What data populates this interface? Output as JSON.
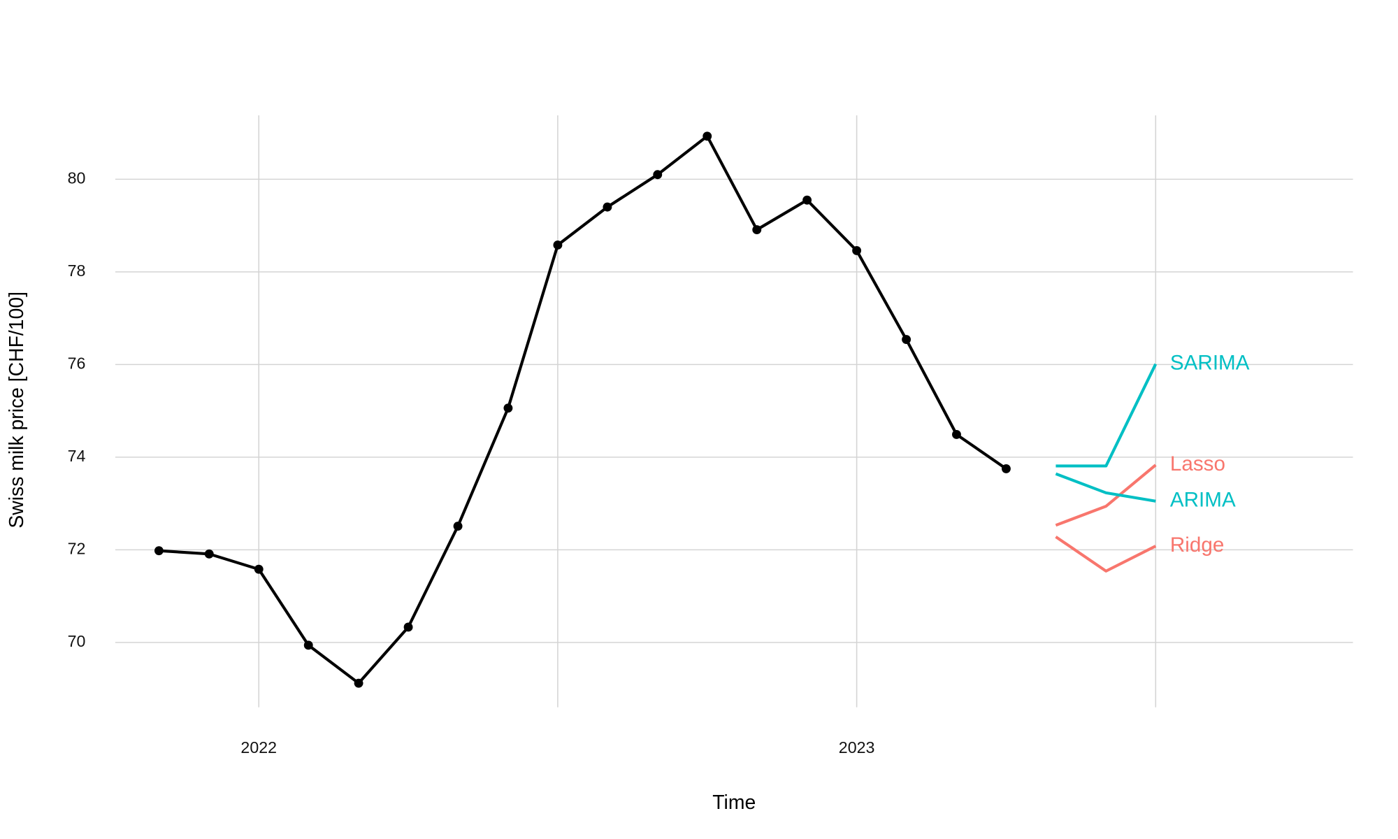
{
  "chart_data": {
    "type": "line",
    "x_label": "Time",
    "y_label": "Swiss milk price [CHF/100]",
    "xlim": [
      2021.76,
      2023.83
    ],
    "xticks": [
      2022,
      2023
    ],
    "x_minor_grid": [
      2022.5,
      2023.5
    ],
    "ylim": [
      68.6,
      81.38
    ],
    "yticks": [
      70,
      72,
      74,
      76,
      78,
      80
    ],
    "grid": true,
    "series": [
      {
        "color": "#000000",
        "markers": true,
        "x": [
          2021.833,
          2021.917,
          2022,
          2022.083,
          2022.167,
          2022.25,
          2022.333,
          2022.417,
          2022.5,
          2022.583,
          2022.667,
          2022.75,
          2022.833,
          2022.917,
          2023,
          2023.083,
          2023.167,
          2023.25
        ],
        "values": [
          71.98,
          71.91,
          71.58,
          69.94,
          69.12,
          70.33,
          72.51,
          75.06,
          78.58,
          79.4,
          80.1,
          80.93,
          78.91,
          79.55,
          78.46,
          76.54,
          74.49,
          73.75
        ]
      },
      {
        "name": "SARIMA",
        "color": "#00BFC4",
        "x": [
          2023.333,
          2023.417,
          2023.5
        ],
        "values": [
          73.81,
          73.81,
          76.01
        ]
      },
      {
        "name": "Lasso",
        "color": "#F8766D",
        "x": [
          2023.333,
          2023.417,
          2023.5
        ],
        "values": [
          72.53,
          72.94,
          73.83
        ]
      },
      {
        "name": "ARIMA",
        "color": "#00BFC4",
        "x": [
          2023.333,
          2023.417,
          2023.5
        ],
        "values": [
          73.64,
          73.23,
          73.05
        ]
      },
      {
        "name": "Ridge",
        "color": "#F8766D",
        "x": [
          2023.333,
          2023.417,
          2023.5
        ],
        "values": [
          72.28,
          71.54,
          72.08
        ]
      }
    ]
  }
}
